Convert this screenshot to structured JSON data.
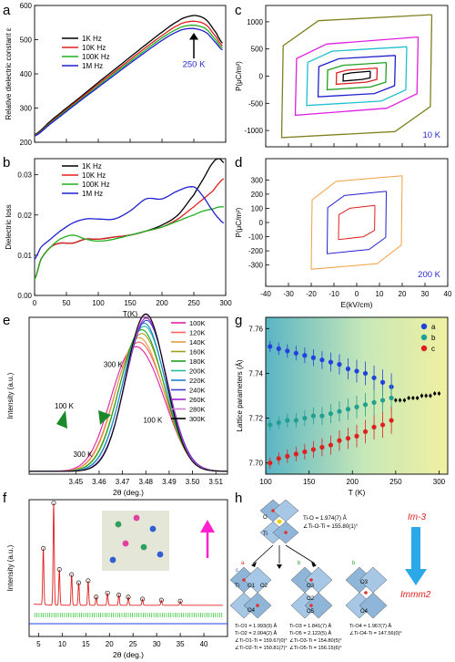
{
  "chart_data": [
    {
      "id": "a",
      "panel_label": "a",
      "type": "line",
      "xlabel": "",
      "ylabel": "Relative dielectric constant ε",
      "xlim": [
        0,
        300
      ],
      "ylim": [
        200,
        600
      ],
      "x_ticks": [
        "0",
        "50",
        "100",
        "150",
        "200",
        "250",
        "300"
      ],
      "y_ticks": [
        "200",
        "300",
        "400",
        "500",
        "600"
      ],
      "legend_position": "upper-left",
      "annotation": {
        "text": "250 K",
        "x": 250,
        "y": 440,
        "color": "#2a2ad0"
      },
      "series": [
        {
          "name": "1K Hz",
          "color": "#000000",
          "x": [
            0,
            25,
            50,
            75,
            100,
            125,
            150,
            175,
            200,
            225,
            240,
            255,
            270,
            285,
            295
          ],
          "y": [
            222,
            262,
            300,
            337,
            375,
            412,
            449,
            486,
            522,
            554,
            567,
            570,
            557,
            520,
            490
          ]
        },
        {
          "name": "10K Hz",
          "color": "#e02020",
          "x": [
            0,
            25,
            50,
            75,
            100,
            125,
            150,
            175,
            200,
            225,
            240,
            255,
            270,
            285,
            295
          ],
          "y": [
            220,
            258,
            296,
            333,
            370,
            406,
            442,
            478,
            512,
            542,
            552,
            553,
            542,
            508,
            482
          ]
        },
        {
          "name": "100K Hz",
          "color": "#20b020",
          "x": [
            0,
            25,
            50,
            75,
            100,
            125,
            150,
            175,
            200,
            225,
            240,
            255,
            270,
            285,
            295
          ],
          "y": [
            219,
            256,
            293,
            329,
            365,
            401,
            436,
            471,
            505,
            532,
            541,
            541,
            530,
            498,
            476
          ]
        },
        {
          "name": "1M Hz",
          "color": "#2020d0",
          "x": [
            0,
            25,
            50,
            75,
            100,
            125,
            150,
            175,
            200,
            225,
            240,
            255,
            270,
            285,
            295
          ],
          "y": [
            218,
            254,
            290,
            326,
            361,
            396,
            431,
            465,
            498,
            524,
            532,
            531,
            520,
            490,
            470
          ]
        }
      ]
    },
    {
      "id": "b",
      "panel_label": "b",
      "type": "line",
      "xlabel": "T(K)",
      "ylabel": "Dielectric loss",
      "xlim": [
        0,
        300
      ],
      "ylim": [
        0,
        0.034
      ],
      "x_ticks": [
        "0",
        "50",
        "100",
        "150",
        "200",
        "250",
        "300"
      ],
      "y_ticks": [
        "0.00",
        "0.01",
        "0.02",
        "0.03"
      ],
      "legend_position": "upper-left",
      "series": [
        {
          "name": "1K Hz",
          "color": "#000000",
          "x": [
            0,
            10,
            25,
            40,
            60,
            80,
            100,
            125,
            150,
            175,
            200,
            225,
            250,
            265,
            280,
            290,
            297
          ],
          "y": [
            0.004,
            0.009,
            0.012,
            0.013,
            0.013,
            0.014,
            0.014,
            0.0145,
            0.015,
            0.016,
            0.0175,
            0.02,
            0.025,
            0.029,
            0.033,
            0.034,
            0.033
          ]
        },
        {
          "name": "10K Hz",
          "color": "#e02020",
          "x": [
            0,
            10,
            25,
            40,
            60,
            80,
            100,
            125,
            150,
            175,
            200,
            225,
            250,
            265,
            280,
            290,
            297
          ],
          "y": [
            0.004,
            0.009,
            0.012,
            0.013,
            0.013,
            0.014,
            0.014,
            0.0145,
            0.015,
            0.016,
            0.017,
            0.019,
            0.022,
            0.024,
            0.026,
            0.028,
            0.029
          ]
        },
        {
          "name": "100K Hz",
          "color": "#20b020",
          "x": [
            0,
            10,
            25,
            40,
            60,
            80,
            100,
            125,
            150,
            175,
            200,
            225,
            250,
            265,
            280,
            290,
            297
          ],
          "y": [
            0.004,
            0.009,
            0.012,
            0.014,
            0.015,
            0.014,
            0.0135,
            0.014,
            0.015,
            0.016,
            0.017,
            0.0185,
            0.02,
            0.021,
            0.0215,
            0.022,
            0.022
          ]
        },
        {
          "name": "1M Hz",
          "color": "#2020d0",
          "x": [
            0,
            10,
            25,
            40,
            60,
            80,
            100,
            125,
            150,
            175,
            200,
            225,
            250,
            265,
            280,
            290,
            297
          ],
          "y": [
            0.009,
            0.012,
            0.014,
            0.016,
            0.018,
            0.019,
            0.019,
            0.019,
            0.021,
            0.024,
            0.024,
            0.026,
            0.027,
            0.0245,
            0.021,
            0.019,
            0.018
          ]
        }
      ]
    },
    {
      "id": "c",
      "panel_label": "c",
      "type": "line",
      "xlabel": "",
      "ylabel": "P(μC/m²)",
      "xlim": [
        -40,
        40
      ],
      "ylim": [
        -1300,
        1300
      ],
      "x_ticks": [],
      "y_ticks": [
        "-1000",
        "-500",
        "0",
        "500",
        "1000"
      ],
      "annotation": {
        "text": "10 K",
        "color": "#2a2ad0"
      },
      "loops": [
        {
          "color": "#808020",
          "ex": 33,
          "pmax": 1130,
          "pr": 1020,
          "ec": 28
        },
        {
          "color": "#e020e0",
          "ex": 27,
          "pmax": 720,
          "pr": 590,
          "ec": 22
        },
        {
          "color": "#20c0d0",
          "ex": 22,
          "pmax": 540,
          "pr": 460,
          "ec": 18
        },
        {
          "color": "#2020d0",
          "ex": 17,
          "pmax": 380,
          "pr": 320,
          "ec": 13
        },
        {
          "color": "#20a020",
          "ex": 13,
          "pmax": 250,
          "pr": 200,
          "ec": 10
        },
        {
          "color": "#e02020",
          "ex": 9,
          "pmax": 150,
          "pr": 110,
          "ec": 7
        },
        {
          "color": "#000000",
          "ex": 6,
          "pmax": 90,
          "pr": 60,
          "ec": 4
        }
      ]
    },
    {
      "id": "d",
      "panel_label": "d",
      "type": "line",
      "xlabel": "E(kV/cm)",
      "ylabel": "P(μC/m²)",
      "xlim": [
        -40,
        40
      ],
      "ylim": [
        -450,
        450
      ],
      "x_ticks": [
        "-40",
        "-30",
        "-20",
        "-10",
        "0",
        "10",
        "20",
        "30",
        "40"
      ],
      "y_ticks": [
        "-300",
        "-200",
        "-100",
        "0",
        "100",
        "200",
        "300"
      ],
      "annotation": {
        "text": "200 K",
        "color": "#2a2ad0"
      },
      "loops": [
        {
          "color": "#f0a040",
          "ex": 20,
          "pmax": 330,
          "pr": 290,
          "ec": 15
        },
        {
          "color": "#2020d0",
          "ex": 13,
          "pmax": 220,
          "pr": 190,
          "ec": 9
        },
        {
          "color": "#e02020",
          "ex": 8,
          "pmax": 120,
          "pr": 100,
          "ec": 5
        }
      ]
    },
    {
      "id": "e",
      "panel_label": "e",
      "type": "line",
      "xlabel": "2θ (deg.)",
      "ylabel": "Intensity (a.u.)",
      "xlim": [
        3.43,
        3.515
      ],
      "x_ticks": [
        "3.45",
        "3.46",
        "3.47",
        "3.48",
        "3.49",
        "3.50",
        "3.51"
      ],
      "legend_position": "right",
      "annotations": [
        {
          "text": "300 K",
          "x": 3.466,
          "yfrac": 0.75
        },
        {
          "text": "100 K",
          "x": 3.483,
          "yfrac": 0.36
        },
        {
          "text": "100 K",
          "x": 3.445,
          "yfrac": 0.46
        },
        {
          "text": "300 K",
          "x": 3.453,
          "yfrac": 0.12
        }
      ],
      "series": [
        {
          "name": "100K",
          "color": "#e020a0",
          "center": 3.476,
          "split": 0.012
        },
        {
          "name": "120K",
          "color": "#ff6060",
          "center": 3.477,
          "split": 0.011
        },
        {
          "name": "140K",
          "color": "#e0a040",
          "center": 3.477,
          "split": 0.01
        },
        {
          "name": "160K",
          "color": "#a0a020",
          "center": 3.478,
          "split": 0.009
        },
        {
          "name": "180K",
          "color": "#20a020",
          "center": 3.478,
          "split": 0.008
        },
        {
          "name": "200K",
          "color": "#20c0a0",
          "center": 3.479,
          "split": 0.007
        },
        {
          "name": "220K",
          "color": "#2080d0",
          "center": 3.479,
          "split": 0.006
        },
        {
          "name": "240K",
          "color": "#4040d0",
          "center": 3.48,
          "split": 0.005
        },
        {
          "name": "260K",
          "color": "#a020d0",
          "center": 3.48,
          "split": 0.004
        },
        {
          "name": "280K",
          "color": "#d080d0",
          "center": 3.48,
          "split": 0.002
        },
        {
          "name": "300K",
          "color": "#000000",
          "center": 3.48,
          "split": 0.0
        }
      ]
    },
    {
      "id": "g",
      "panel_label": "g",
      "type": "scatter",
      "xlabel": "T (K)",
      "ylabel": "Lattice parameters (Å)",
      "xlim": [
        100,
        310
      ],
      "ylim": [
        7.695,
        7.765
      ],
      "x_ticks": [
        "100",
        "150",
        "200",
        "250",
        "300"
      ],
      "y_ticks": [
        "7.70",
        "7.72",
        "7.74",
        "7.76"
      ],
      "legend_position": "top-right",
      "series": [
        {
          "name": "a",
          "color": "#2040e0",
          "x": [
            105,
            115,
            125,
            135,
            145,
            155,
            165,
            175,
            185,
            195,
            205,
            215,
            225,
            235,
            245
          ],
          "y": [
            7.752,
            7.751,
            7.75,
            7.749,
            7.748,
            7.747,
            7.746,
            7.745,
            7.744,
            7.742,
            7.741,
            7.74,
            7.738,
            7.736,
            7.734
          ]
        },
        {
          "name": "b",
          "color": "#20a090",
          "x": [
            105,
            115,
            125,
            135,
            145,
            155,
            165,
            175,
            185,
            195,
            205,
            215,
            225,
            235,
            245
          ],
          "y": [
            7.717,
            7.718,
            7.719,
            7.719,
            7.72,
            7.721,
            7.721,
            7.722,
            7.723,
            7.724,
            7.725,
            7.726,
            7.727,
            7.728,
            7.729
          ]
        },
        {
          "name": "c",
          "color": "#e02020",
          "x": [
            105,
            115,
            125,
            135,
            145,
            155,
            165,
            175,
            185,
            195,
            205,
            215,
            225,
            235,
            245
          ],
          "y": [
            7.7,
            7.702,
            7.703,
            7.704,
            7.705,
            7.706,
            7.707,
            7.708,
            7.71,
            7.711,
            7.712,
            7.714,
            7.716,
            7.717,
            7.719
          ]
        },
        {
          "name": "",
          "color": "#000000",
          "x": [
            250,
            255,
            260,
            265,
            270,
            275,
            280,
            285,
            290,
            295,
            300
          ],
          "y": [
            7.728,
            7.728,
            7.728,
            7.729,
            7.729,
            7.729,
            7.73,
            7.73,
            7.73,
            7.731,
            7.731
          ]
        }
      ]
    },
    {
      "id": "f",
      "panel_label": "f",
      "type": "line",
      "xlabel": "2θ (deg.)",
      "ylabel": "Intensity (a.u.)",
      "xlim": [
        3,
        45
      ],
      "x_ticks": [
        "5",
        "10",
        "15",
        "20",
        "25",
        "30",
        "35",
        "40"
      ],
      "peaks": [
        {
          "x": 6.0,
          "h": 0.55
        },
        {
          "x": 8.2,
          "h": 1.0
        },
        {
          "x": 9.4,
          "h": 0.35
        },
        {
          "x": 12.0,
          "h": 0.3
        },
        {
          "x": 13.5,
          "h": 0.22
        },
        {
          "x": 15.5,
          "h": 0.24
        },
        {
          "x": 17.2,
          "h": 0.08
        },
        {
          "x": 19.6,
          "h": 0.12
        },
        {
          "x": 22.0,
          "h": 0.1
        },
        {
          "x": 24.0,
          "h": 0.08
        },
        {
          "x": 27.0,
          "h": 0.06
        },
        {
          "x": 31.0,
          "h": 0.05
        },
        {
          "x": 35.0,
          "h": 0.04
        }
      ]
    }
  ],
  "panel_h": {
    "label": "h",
    "center": {
      "line1": "Ti-O = 1.974(7) Å",
      "line2": "∠Ti-O-Ti = 155.80(1)°"
    },
    "left": {
      "line1": "Ti-O1 = 1.993(9) Å",
      "line2": "Ti-O2 = 2.004(2) Å",
      "line3": "∠Ti-O1-Ti = 159.67(0)°",
      "line4": "∠Ti-O2-Ti = 150.81(7)°"
    },
    "middle": {
      "line1": "Ti-O3 = 1.841(7) Å",
      "line2": "Ti-O5 = 2.122(5) Å",
      "line3": "∠Ti-O3-Ti = 154.80(5)°",
      "line4": "∠Ti-O5-Ti = 156.15(6)°"
    },
    "right": {
      "line1": "Ti-O4 = 1.967(7) Å",
      "line2": "∠Ti-O4-Ti = 147.56(0)°"
    },
    "phase_top": "Im-3",
    "phase_bottom": "Immm2",
    "atom_labels": {
      "ti": "Ti",
      "o": "O",
      "o1": "O1",
      "o2": "O2",
      "o3": "O3",
      "o4": "O4",
      "o5": "O5",
      "a": "a",
      "b": "b",
      "c": "c"
    }
  }
}
